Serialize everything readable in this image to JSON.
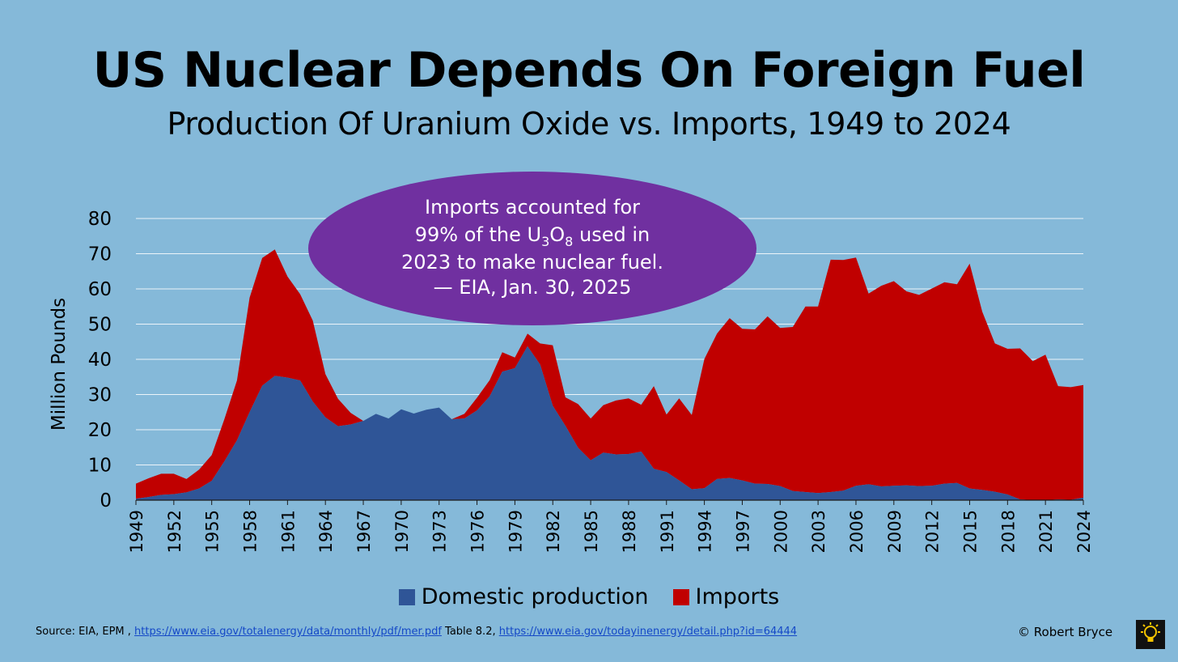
{
  "title": "US Nuclear Depends On Foreign Fuel",
  "subtitle": "Production Of Uranium Oxide vs. Imports, 1949 to 2024",
  "callout": {
    "line1": "Imports accounted for",
    "line2_pre": "99% of the U",
    "line2_sub1": "3",
    "line2_mid": "O",
    "line2_sub2": "8",
    "line2_post": " used in",
    "line3": "2023 to make nuclear fuel.",
    "line4": "— EIA, Jan. 30, 2025"
  },
  "source": {
    "prefix": "Source: EIA, EPM , ",
    "link1": "https://www.eia.gov/totalenergy/data/monthly/pdf/mer.pdf",
    "mid": " Table 8.2, ",
    "link2": "https://www.eia.gov/todayinenergy/detail.php?id=64444"
  },
  "credit": "© Robert Bryce",
  "colors": {
    "background": "#85b9d9",
    "domestic": "#2f5597",
    "imports": "#c00000",
    "callout": "#7030a0",
    "grid": "#ffffff"
  },
  "logo_icon": "lightbulb-icon",
  "chart_data": {
    "type": "area",
    "stacked": true,
    "ylabel": "Million Pounds",
    "xlabel": "",
    "ylim": [
      0,
      80
    ],
    "yticks": [
      0,
      10,
      20,
      30,
      40,
      50,
      60,
      70,
      80
    ],
    "x_tick_labels": [
      "1949",
      "1952",
      "1955",
      "1958",
      "1961",
      "1964",
      "1967",
      "1970",
      "1973",
      "1976",
      "1979",
      "1982",
      "1985",
      "1988",
      "1991",
      "1994",
      "1997",
      "2000",
      "2003",
      "2006",
      "2009",
      "2012",
      "2015",
      "2018",
      "2021",
      "2024"
    ],
    "grid": true,
    "legend_position": "bottom",
    "years": [
      1949,
      1950,
      1951,
      1952,
      1953,
      1954,
      1955,
      1956,
      1957,
      1958,
      1959,
      1960,
      1961,
      1962,
      1963,
      1964,
      1965,
      1966,
      1967,
      1968,
      1969,
      1970,
      1971,
      1972,
      1973,
      1974,
      1975,
      1976,
      1977,
      1978,
      1979,
      1980,
      1981,
      1982,
      1983,
      1984,
      1985,
      1986,
      1987,
      1988,
      1989,
      1990,
      1991,
      1992,
      1993,
      1994,
      1995,
      1996,
      1997,
      1998,
      1999,
      2000,
      2001,
      2002,
      2003,
      2004,
      2005,
      2006,
      2007,
      2008,
      2009,
      2010,
      2011,
      2012,
      2013,
      2014,
      2015,
      2016,
      2017,
      2018,
      2019,
      2020,
      2021,
      2022,
      2023,
      2024
    ],
    "series": [
      {
        "name": "Domestic production",
        "color": "#2f5597",
        "values": [
          0.4,
          0.9,
          1.5,
          1.7,
          2.2,
          3.3,
          5.5,
          11.0,
          17.0,
          25.0,
          32.5,
          35.3,
          34.8,
          34.0,
          28.0,
          23.5,
          21.0,
          21.5,
          22.5,
          24.5,
          23.2,
          25.8,
          24.6,
          25.7,
          26.3,
          23.0,
          23.2,
          25.5,
          29.5,
          36.5,
          37.5,
          43.7,
          38.5,
          26.8,
          21.1,
          14.9,
          11.3,
          13.5,
          13.0,
          13.1,
          13.8,
          8.9,
          8.0,
          5.6,
          3.1,
          3.4,
          6.0,
          6.3,
          5.6,
          4.7,
          4.6,
          4.0,
          2.6,
          2.3,
          2.0,
          2.3,
          2.7,
          4.1,
          4.5,
          3.9,
          4.1,
          4.2,
          4.0,
          4.1,
          4.7,
          4.9,
          3.3,
          2.9,
          2.4,
          1.6,
          0.2,
          0.0,
          0.0,
          0.2,
          0.1,
          0.7
        ]
      },
      {
        "name": "Imports",
        "color": "#c00000",
        "values": [
          4.3,
          5.3,
          6.0,
          5.8,
          3.8,
          5.4,
          7.3,
          12.0,
          17.0,
          32.5,
          36.3,
          35.9,
          28.7,
          24.5,
          23.0,
          12.3,
          7.8,
          3.3,
          0,
          0,
          0,
          0,
          0,
          0,
          0,
          0,
          1.3,
          3.6,
          4.6,
          5.5,
          3.0,
          3.6,
          6.0,
          17.2,
          8.1,
          12.4,
          11.9,
          13.5,
          15.3,
          15.8,
          13.3,
          23.5,
          16.3,
          23.3,
          21.1,
          36.7,
          41.3,
          45.4,
          43.1,
          43.8,
          47.6,
          44.9,
          46.6,
          52.7,
          53.0,
          66.0,
          65.5,
          64.8,
          54.2,
          57.0,
          58.1,
          55.1,
          54.3,
          56.0,
          57.2,
          56.4,
          63.9,
          50.6,
          42.1,
          41.4,
          42.9,
          39.5,
          41.3,
          32.2,
          32.0,
          32.0
        ]
      }
    ]
  }
}
